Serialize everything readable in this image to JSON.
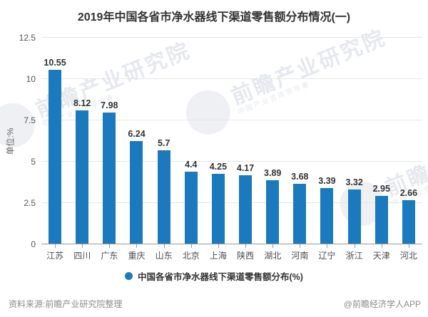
{
  "chart_data": {
    "type": "bar",
    "title": "2019年中国各省市净水器线下渠道零售额分布情况(一)",
    "categories": [
      "江苏",
      "四川",
      "广东",
      "重庆",
      "山东",
      "北京",
      "上海",
      "陕西",
      "湖北",
      "河南",
      "辽宁",
      "浙江",
      "天津",
      "河北"
    ],
    "values": [
      10.55,
      8.12,
      7.98,
      6.24,
      5.7,
      4.4,
      4.25,
      4.17,
      3.89,
      3.68,
      3.39,
      3.32,
      2.95,
      2.66
    ],
    "xlabel": "",
    "ylabel": "单位:%",
    "ylim": [
      0,
      12.5
    ],
    "yticks": [
      0,
      2.5,
      5,
      7.5,
      10,
      12.5
    ],
    "grid": true,
    "legend": "中国各省市净水器线下渠道零售额分布(%)",
    "legend_position": "bottom",
    "bar_color": "#1a7abd",
    "grid_color": "#e6e6e6",
    "axis_color": "#999999"
  },
  "footer": {
    "source": "资料来源:前瞻产业研究院整理",
    "credit": "@前瞻经济学人APP"
  },
  "watermark": {
    "text": "前瞻产业研究院",
    "subtext": "中国产业咨询领导者"
  }
}
